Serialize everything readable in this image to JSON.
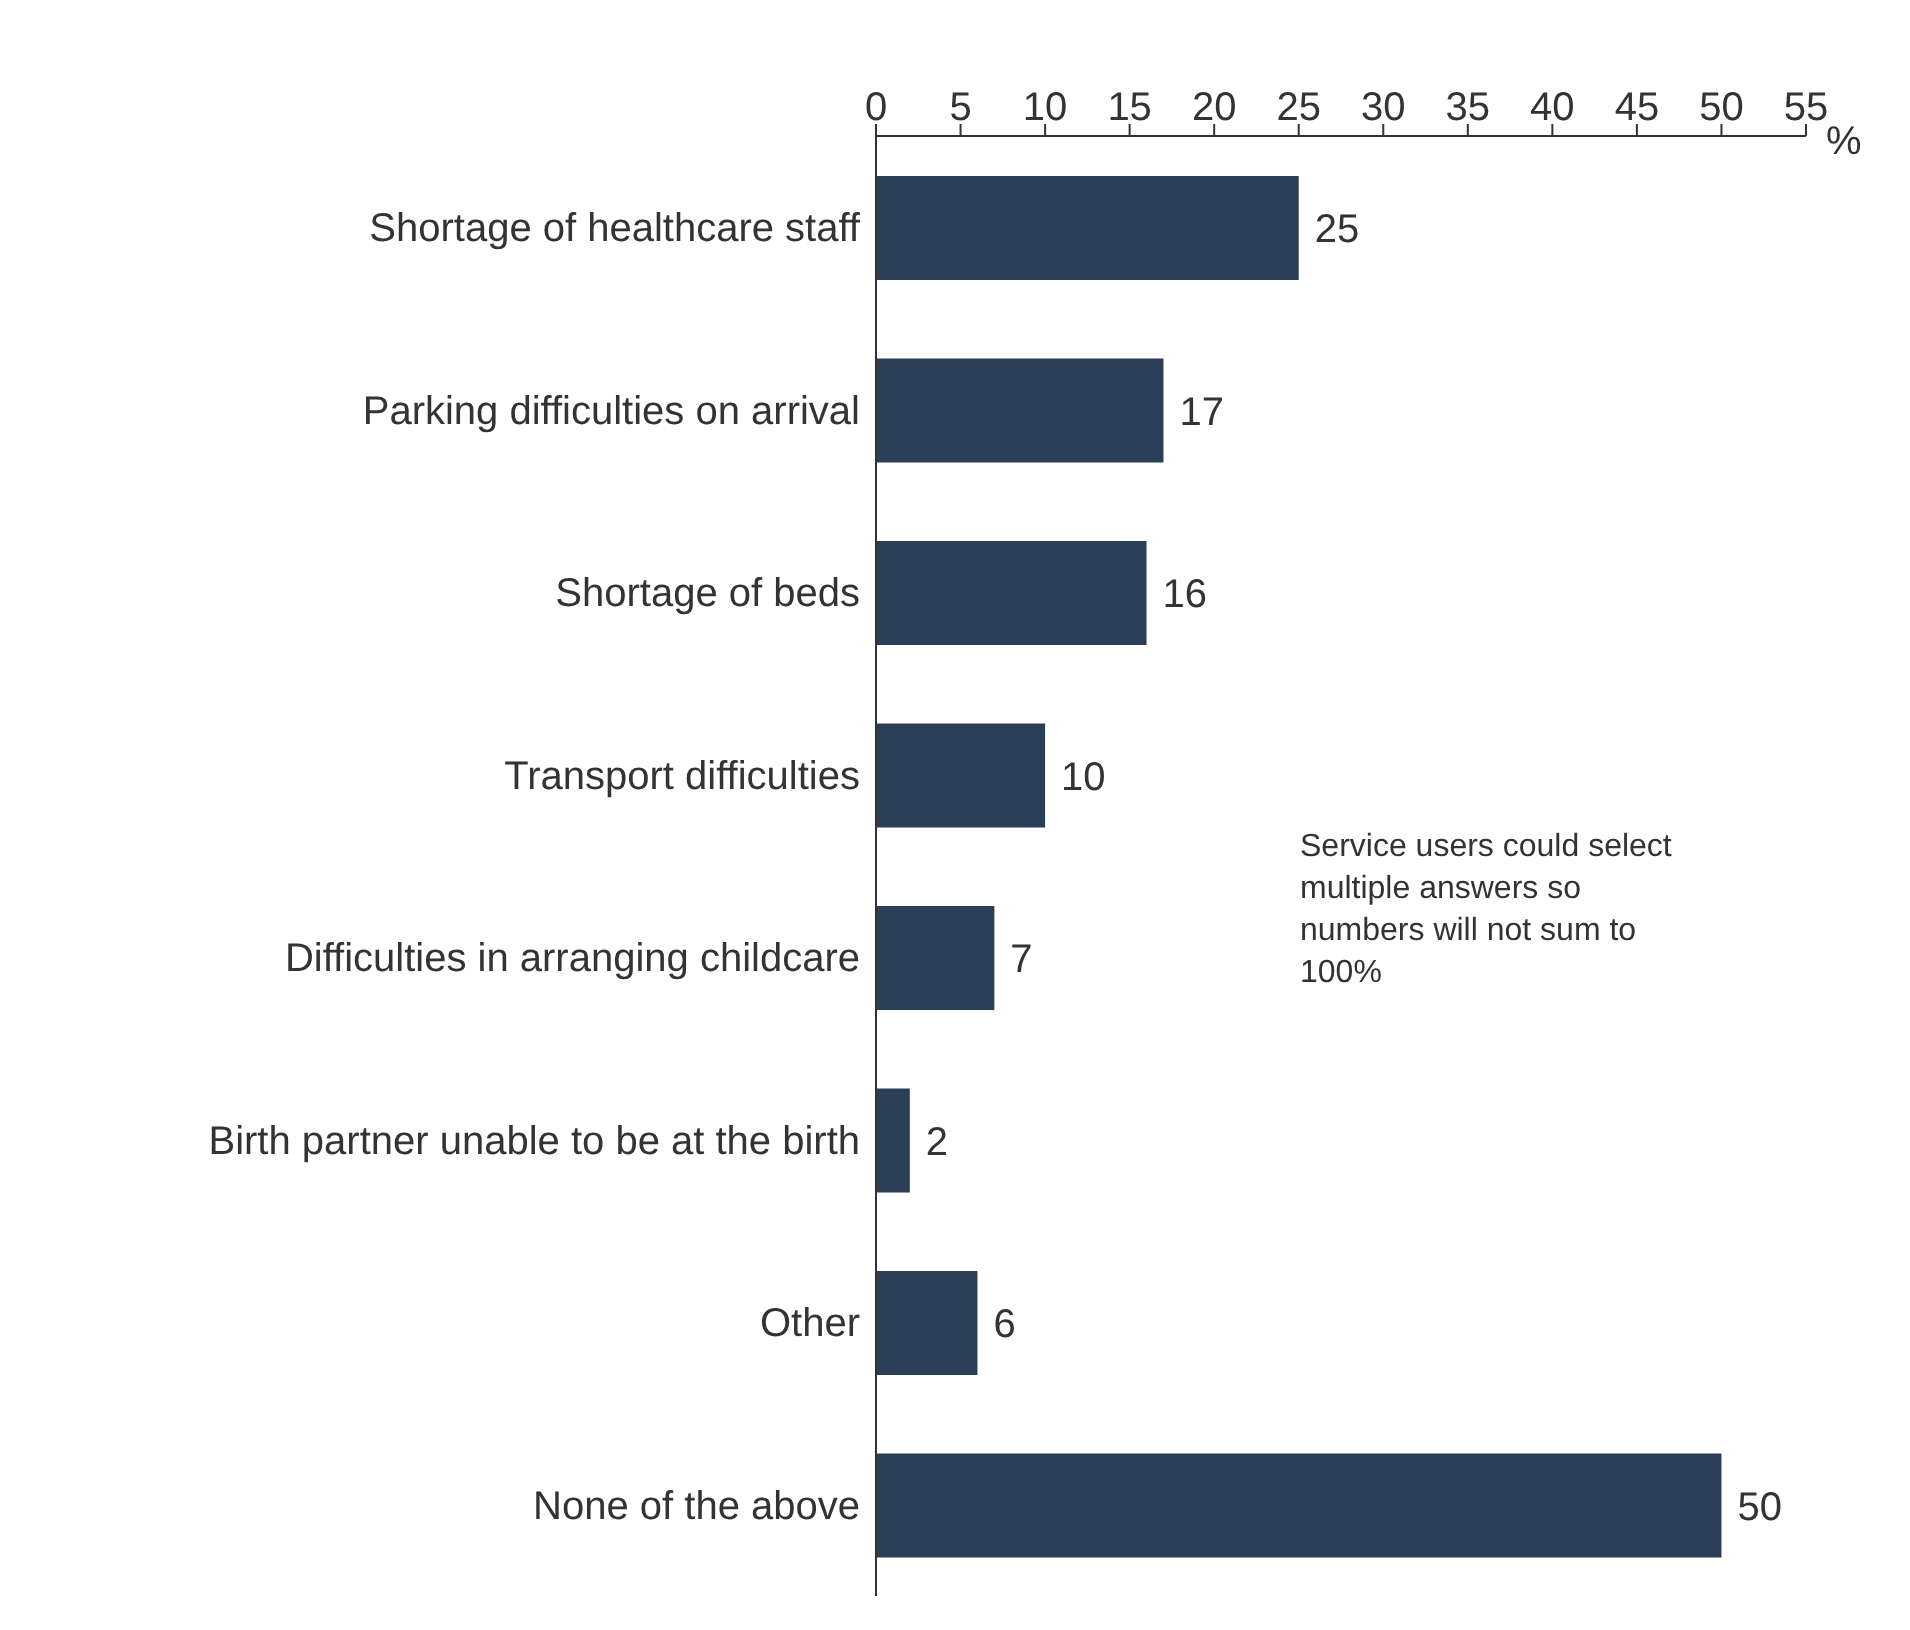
{
  "chart_data": {
    "type": "bar",
    "orientation": "horizontal",
    "xlabel": "%",
    "categories": [
      "Shortage of healthcare staff",
      "Parking difficulties on arrival",
      "Shortage of beds",
      "Transport difficulties",
      "Difficulties in arranging childcare",
      "Birth partner unable to be at the birth",
      "Other",
      "None of the above"
    ],
    "values": [
      25,
      17,
      16,
      10,
      7,
      2,
      6,
      50
    ],
    "color": "#2b3e57",
    "xlim": [
      0,
      55
    ],
    "xticks": [
      0,
      5,
      10,
      15,
      20,
      25,
      30,
      35,
      40,
      45,
      50,
      55
    ],
    "data_labels": true,
    "grid": false,
    "legend": false,
    "annotations": [
      "Service users could select multiple answers so numbers will not sum to 100%"
    ]
  }
}
